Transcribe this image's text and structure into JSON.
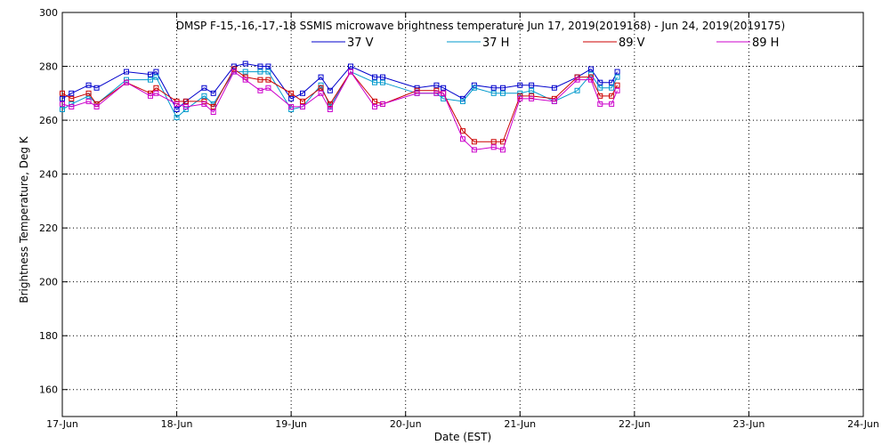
{
  "chart_data": {
    "type": "line",
    "title": "DMSP F-15,-16,-17,-18 SSMIS microwave brightness temperature Jun 17, 2019(2019168) - Jun 24, 2019(2019175)",
    "xlabel": "Date (EST)",
    "ylabel": "Brightness Temperature, Deg K",
    "xlim": [
      0,
      7
    ],
    "ylim": [
      150,
      300
    ],
    "grid": true,
    "legend_position": "top-center",
    "x_ticks": [
      {
        "value": 0,
        "label": "17-Jun"
      },
      {
        "value": 1,
        "label": "18-Jun"
      },
      {
        "value": 2,
        "label": "19-Jun"
      },
      {
        "value": 3,
        "label": "20-Jun"
      },
      {
        "value": 4,
        "label": "21-Jun"
      },
      {
        "value": 5,
        "label": "22-Jun"
      },
      {
        "value": 6,
        "label": "23-Jun"
      },
      {
        "value": 7,
        "label": "24-Jun"
      }
    ],
    "y_ticks": [
      160,
      180,
      200,
      220,
      240,
      260,
      280,
      300
    ],
    "series": [
      {
        "name": "37 V",
        "color": "#0000cc",
        "x": [
          0.0,
          0.08,
          0.23,
          0.3,
          0.56,
          0.77,
          0.82,
          1.0,
          1.08,
          1.24,
          1.32,
          1.5,
          1.6,
          1.73,
          1.8,
          2.0,
          2.1,
          2.26,
          2.34,
          2.52,
          2.73,
          2.8,
          3.1,
          3.27,
          3.33,
          3.5,
          3.6,
          3.77,
          3.85,
          4.0,
          4.1,
          4.3,
          4.5,
          4.62,
          4.7,
          4.8,
          4.85
        ],
        "values": [
          268,
          270,
          273,
          272,
          278,
          277,
          278,
          264,
          267,
          272,
          270,
          280,
          281,
          280,
          280,
          268,
          270,
          276,
          271,
          280,
          276,
          276,
          272,
          273,
          272,
          268,
          273,
          272,
          272,
          273,
          273,
          272,
          276,
          279,
          274,
          274,
          278
        ]
      },
      {
        "name": "37 H",
        "color": "#0099cc",
        "x": [
          0.0,
          0.08,
          0.23,
          0.3,
          0.56,
          0.77,
          0.82,
          1.0,
          1.08,
          1.24,
          1.32,
          1.5,
          1.6,
          1.73,
          1.8,
          2.0,
          2.1,
          2.26,
          2.34,
          2.52,
          2.73,
          2.8,
          3.1,
          3.27,
          3.33,
          3.5,
          3.6,
          3.77,
          3.85,
          4.0,
          4.1,
          4.3,
          4.5,
          4.62,
          4.7,
          4.8,
          4.85
        ],
        "values": [
          264,
          266,
          269,
          266,
          275,
          275,
          276,
          261,
          264,
          269,
          266,
          278,
          278,
          278,
          278,
          264,
          265,
          273,
          265,
          278,
          274,
          274,
          270,
          270,
          268,
          267,
          272,
          270,
          270,
          270,
          271,
          267,
          271,
          277,
          272,
          272,
          276
        ]
      },
      {
        "name": "89 V",
        "color": "#cc0000",
        "x": [
          0.0,
          0.08,
          0.23,
          0.3,
          0.56,
          0.77,
          0.82,
          1.0,
          1.08,
          1.24,
          1.32,
          1.5,
          1.6,
          1.73,
          1.8,
          2.0,
          2.1,
          2.26,
          2.34,
          2.52,
          2.73,
          2.8,
          3.1,
          3.27,
          3.33,
          3.5,
          3.6,
          3.77,
          3.85,
          4.0,
          4.1,
          4.3,
          4.5,
          4.62,
          4.7,
          4.8,
          4.85
        ],
        "values": [
          270,
          268,
          270,
          266,
          274,
          270,
          272,
          267,
          267,
          267,
          265,
          279,
          276,
          275,
          275,
          270,
          267,
          272,
          266,
          278,
          267,
          266,
          271,
          271,
          270,
          256,
          252,
          252,
          252,
          269,
          269,
          268,
          276,
          276,
          269,
          269,
          273
        ]
      },
      {
        "name": "89 H",
        "color": "#cc00cc",
        "x": [
          0.0,
          0.08,
          0.23,
          0.3,
          0.56,
          0.77,
          0.82,
          1.0,
          1.08,
          1.24,
          1.32,
          1.5,
          1.6,
          1.73,
          1.8,
          2.0,
          2.1,
          2.26,
          2.34,
          2.52,
          2.73,
          2.8,
          3.1,
          3.27,
          3.33,
          3.5,
          3.6,
          3.77,
          3.85,
          4.0,
          4.1,
          4.3,
          4.5,
          4.62,
          4.7,
          4.8,
          4.85
        ],
        "values": [
          266,
          265,
          267,
          265,
          274,
          269,
          270,
          266,
          265,
          266,
          263,
          278,
          275,
          271,
          272,
          265,
          265,
          270,
          264,
          278,
          265,
          266,
          270,
          270,
          270,
          253,
          249,
          250,
          249,
          268,
          268,
          267,
          275,
          275,
          266,
          266,
          271
        ]
      }
    ]
  }
}
